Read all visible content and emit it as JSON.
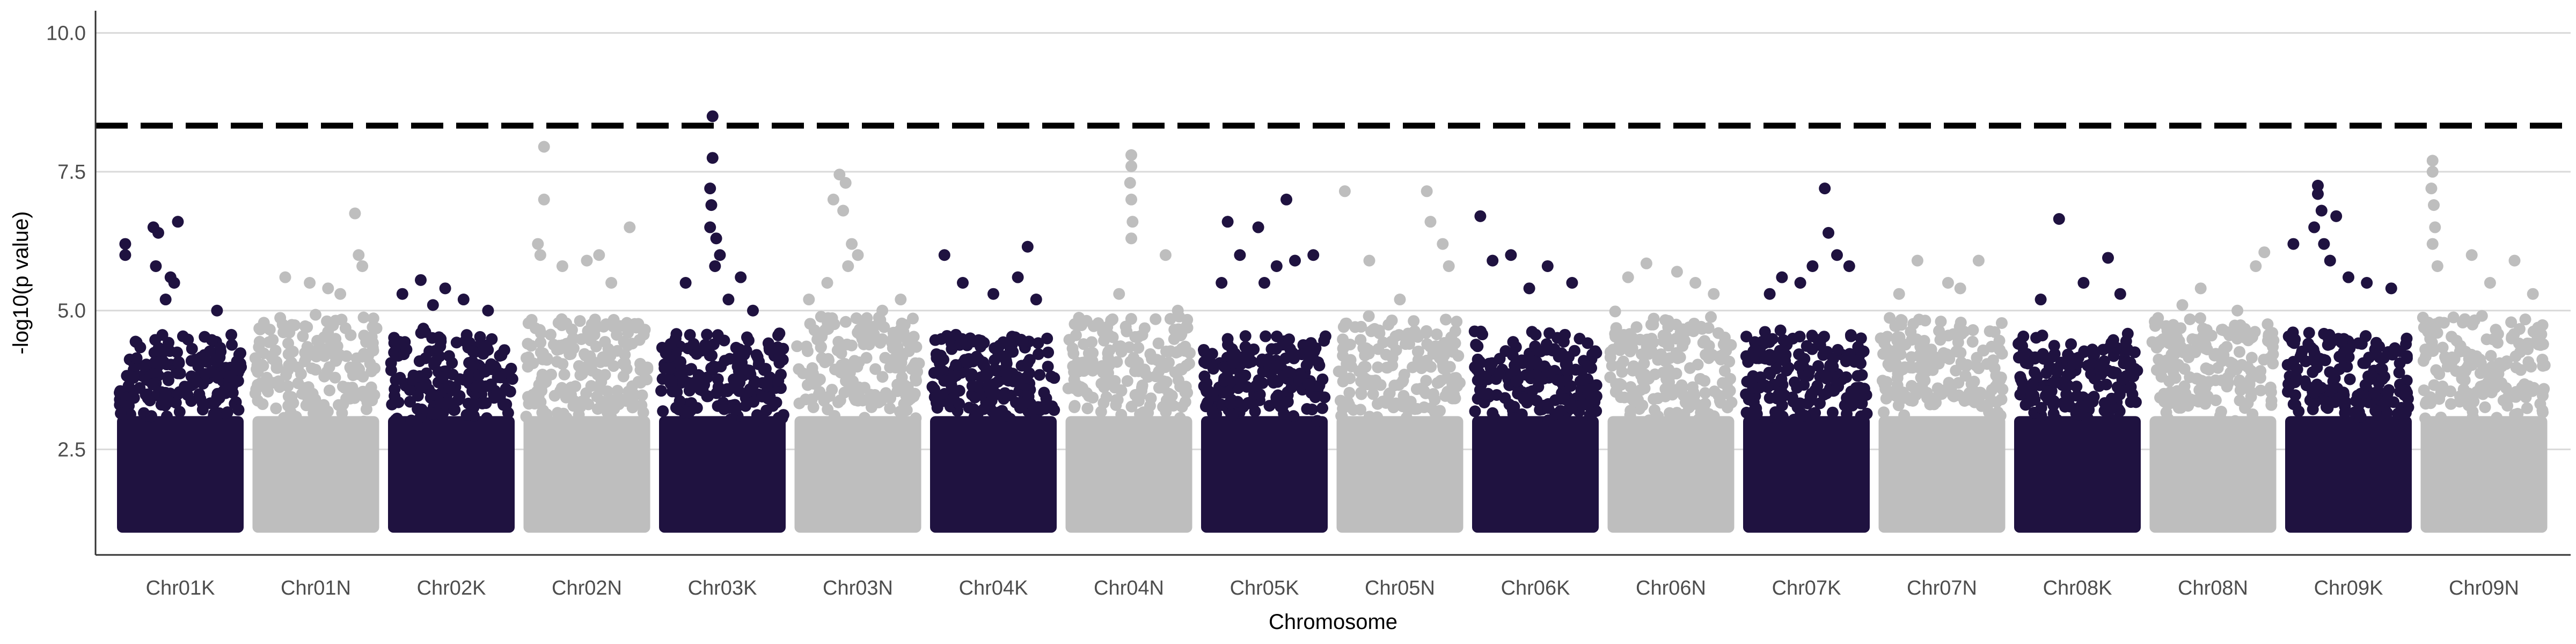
{
  "chart_data": {
    "type": "scatter",
    "title": "",
    "xlabel": "Chromosome",
    "ylabel": "-log10(p value)",
    "ylim": [
      0.6,
      10.4
    ],
    "yticks": [
      2.5,
      5.0,
      7.5,
      10.0
    ],
    "ytick_labels": [
      "2.5",
      "5.0",
      "7.5",
      "10.0"
    ],
    "grid": "horizontal major lines",
    "threshold": 8.33,
    "colors": {
      "odd": "#1f1240",
      "even": "#bebebe",
      "threshold": "#000000",
      "grid": "#d9d9d9"
    },
    "categories": [
      "Chr01K",
      "Chr01N",
      "Chr02K",
      "Chr02N",
      "Chr03K",
      "Chr03N",
      "Chr04K",
      "Chr04N",
      "Chr05K",
      "Chr05N",
      "Chr06K",
      "Chr06N",
      "Chr07K",
      "Chr07N",
      "Chr08K",
      "Chr08N",
      "Chr09K",
      "Chr09N"
    ],
    "series": [
      {
        "category": "Chr01K",
        "peak": 6.65,
        "top": [
          [
            0.05,
            6.2
          ],
          [
            0.05,
            6.0
          ],
          [
            0.28,
            6.5
          ],
          [
            0.32,
            6.4
          ],
          [
            0.3,
            5.8
          ],
          [
            0.48,
            6.6
          ],
          [
            0.42,
            5.6
          ],
          [
            0.45,
            5.5
          ],
          [
            0.8,
            5.0
          ],
          [
            0.38,
            5.2
          ]
        ]
      },
      {
        "category": "Chr01N",
        "peak": 6.75,
        "top": [
          [
            0.82,
            6.75
          ],
          [
            0.85,
            6.0
          ],
          [
            0.88,
            5.8
          ],
          [
            0.25,
            5.6
          ],
          [
            0.45,
            5.5
          ],
          [
            0.6,
            5.4
          ],
          [
            0.7,
            5.3
          ]
        ]
      },
      {
        "category": "Chr02K",
        "peak": 5.55,
        "top": [
          [
            0.25,
            5.55
          ],
          [
            0.1,
            5.3
          ],
          [
            0.45,
            5.4
          ],
          [
            0.6,
            5.2
          ],
          [
            0.8,
            5.0
          ],
          [
            0.35,
            5.1
          ]
        ]
      },
      {
        "category": "Chr02N",
        "peak": 7.95,
        "top": [
          [
            0.15,
            7.95
          ],
          [
            0.15,
            7.0
          ],
          [
            0.1,
            6.2
          ],
          [
            0.12,
            6.0
          ],
          [
            0.3,
            5.8
          ],
          [
            0.5,
            5.9
          ],
          [
            0.6,
            6.0
          ],
          [
            0.85,
            6.5
          ],
          [
            0.7,
            5.5
          ]
        ]
      },
      {
        "category": "Chr03K",
        "peak": 8.5,
        "top": [
          [
            0.42,
            8.5
          ],
          [
            0.42,
            7.75
          ],
          [
            0.4,
            7.2
          ],
          [
            0.41,
            6.9
          ],
          [
            0.4,
            6.5
          ],
          [
            0.45,
            6.3
          ],
          [
            0.48,
            6.0
          ],
          [
            0.44,
            5.8
          ],
          [
            0.2,
            5.5
          ],
          [
            0.65,
            5.6
          ],
          [
            0.55,
            5.2
          ],
          [
            0.75,
            5.0
          ]
        ]
      },
      {
        "category": "Chr03N",
        "peak": 7.45,
        "top": [
          [
            0.35,
            7.45
          ],
          [
            0.4,
            7.3
          ],
          [
            0.3,
            7.0
          ],
          [
            0.38,
            6.8
          ],
          [
            0.45,
            6.2
          ],
          [
            0.5,
            6.0
          ],
          [
            0.42,
            5.8
          ],
          [
            0.25,
            5.5
          ],
          [
            0.1,
            5.2
          ],
          [
            0.7,
            5.0
          ],
          [
            0.85,
            5.2
          ]
        ]
      },
      {
        "category": "Chr04K",
        "peak": 6.15,
        "top": [
          [
            0.1,
            6.0
          ],
          [
            0.78,
            6.15
          ],
          [
            0.7,
            5.6
          ],
          [
            0.25,
            5.5
          ],
          [
            0.5,
            5.3
          ],
          [
            0.85,
            5.2
          ]
        ]
      },
      {
        "category": "Chr04N",
        "peak": 7.8,
        "top": [
          [
            0.52,
            7.8
          ],
          [
            0.52,
            7.6
          ],
          [
            0.51,
            7.3
          ],
          [
            0.52,
            7.0
          ],
          [
            0.53,
            6.6
          ],
          [
            0.52,
            6.3
          ],
          [
            0.8,
            6.0
          ],
          [
            0.42,
            5.3
          ],
          [
            0.9,
            5.0
          ]
        ]
      },
      {
        "category": "Chr05K",
        "peak": 7.0,
        "top": [
          [
            0.68,
            7.0
          ],
          [
            0.2,
            6.6
          ],
          [
            0.45,
            6.5
          ],
          [
            0.3,
            6.0
          ],
          [
            0.6,
            5.8
          ],
          [
            0.75,
            5.9
          ],
          [
            0.9,
            6.0
          ],
          [
            0.15,
            5.5
          ],
          [
            0.5,
            5.5
          ]
        ]
      },
      {
        "category": "Chr05N",
        "peak": 7.15,
        "top": [
          [
            0.72,
            7.15
          ],
          [
            0.75,
            6.6
          ],
          [
            0.85,
            6.2
          ],
          [
            0.25,
            5.9
          ],
          [
            0.05,
            7.15
          ],
          [
            0.5,
            5.2
          ],
          [
            0.9,
            5.8
          ]
        ]
      },
      {
        "category": "Chr06K",
        "peak": 6.7,
        "top": [
          [
            0.05,
            6.7
          ],
          [
            0.15,
            5.9
          ],
          [
            0.3,
            6.0
          ],
          [
            0.6,
            5.8
          ],
          [
            0.8,
            5.5
          ],
          [
            0.45,
            5.4
          ]
        ]
      },
      {
        "category": "Chr06N",
        "peak": 5.95,
        "top": [
          [
            0.3,
            5.85
          ],
          [
            0.55,
            5.7
          ],
          [
            0.7,
            5.5
          ],
          [
            0.15,
            5.6
          ],
          [
            0.85,
            5.3
          ]
        ]
      },
      {
        "category": "Chr07K",
        "peak": 7.2,
        "top": [
          [
            0.65,
            7.2
          ],
          [
            0.68,
            6.4
          ],
          [
            0.75,
            6.0
          ],
          [
            0.55,
            5.8
          ],
          [
            0.85,
            5.8
          ],
          [
            0.3,
            5.6
          ],
          [
            0.45,
            5.5
          ],
          [
            0.2,
            5.3
          ]
        ]
      },
      {
        "category": "Chr07N",
        "peak": 5.95,
        "top": [
          [
            0.3,
            5.9
          ],
          [
            0.8,
            5.9
          ],
          [
            0.55,
            5.5
          ],
          [
            0.65,
            5.4
          ],
          [
            0.15,
            5.3
          ]
        ]
      },
      {
        "category": "Chr08K",
        "peak": 6.65,
        "top": [
          [
            0.35,
            6.65
          ],
          [
            0.75,
            5.95
          ],
          [
            0.55,
            5.5
          ],
          [
            0.85,
            5.3
          ],
          [
            0.2,
            5.2
          ]
        ]
      },
      {
        "category": "Chr08N",
        "peak": 6.05,
        "top": [
          [
            0.92,
            6.05
          ],
          [
            0.85,
            5.8
          ],
          [
            0.4,
            5.4
          ],
          [
            0.25,
            5.1
          ],
          [
            0.7,
            5.0
          ]
        ]
      },
      {
        "category": "Chr09K",
        "peak": 7.25,
        "top": [
          [
            0.25,
            7.25
          ],
          [
            0.25,
            7.1
          ],
          [
            0.28,
            6.8
          ],
          [
            0.4,
            6.7
          ],
          [
            0.22,
            6.5
          ],
          [
            0.3,
            6.2
          ],
          [
            0.35,
            5.9
          ],
          [
            0.05,
            6.2
          ],
          [
            0.5,
            5.6
          ],
          [
            0.65,
            5.5
          ],
          [
            0.85,
            5.4
          ]
        ]
      },
      {
        "category": "Chr09N",
        "peak": 7.7,
        "top": [
          [
            0.08,
            7.7
          ],
          [
            0.08,
            7.5
          ],
          [
            0.07,
            7.2
          ],
          [
            0.09,
            6.9
          ],
          [
            0.1,
            6.5
          ],
          [
            0.08,
            6.2
          ],
          [
            0.12,
            5.8
          ],
          [
            0.4,
            6.0
          ],
          [
            0.75,
            5.9
          ],
          [
            0.55,
            5.5
          ],
          [
            0.9,
            5.3
          ]
        ]
      }
    ]
  }
}
